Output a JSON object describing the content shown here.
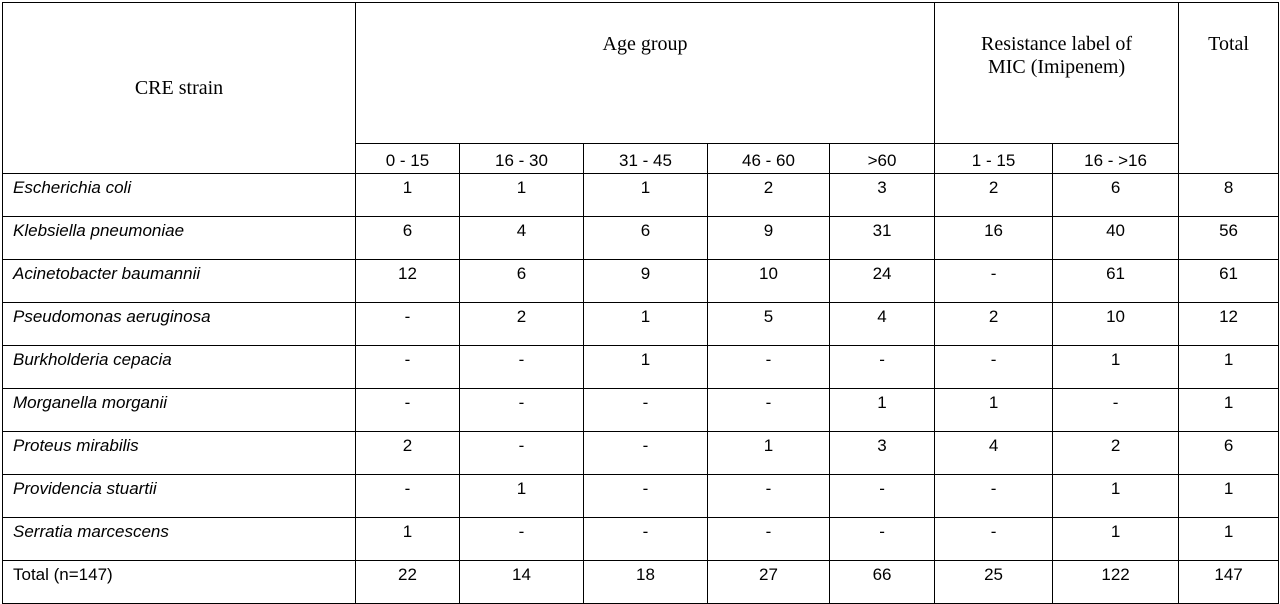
{
  "header": {
    "strain": "CRE strain",
    "age_group": "Age group",
    "resistance": [
      "Resistance label of",
      "MIC (Imipenem)"
    ],
    "total": "Total"
  },
  "subheaders": [
    "0 - 15",
    "16 - 30",
    "31 - 45",
    "46 - 60",
    ">60",
    "1 - 15",
    "16 - >16"
  ],
  "rows": [
    {
      "name": "Escherichia coli",
      "values": [
        "1",
        "1",
        "1",
        "2",
        "3",
        "2",
        "6",
        "8"
      ]
    },
    {
      "name": "Klebsiella pneumoniae",
      "values": [
        "6",
        "4",
        "6",
        "9",
        "31",
        "16",
        "40",
        "56"
      ]
    },
    {
      "name": "Acinetobacter baumannii",
      "values": [
        "12",
        "6",
        "9",
        "10",
        "24",
        "-",
        "61",
        "61"
      ]
    },
    {
      "name": "Pseudomonas aeruginosa",
      "values": [
        "-",
        "2",
        "1",
        "5",
        "4",
        "2",
        "10",
        "12"
      ]
    },
    {
      "name": "Burkholderia cepacia",
      "values": [
        "-",
        "-",
        "1",
        "-",
        "-",
        "-",
        "1",
        "1"
      ]
    },
    {
      "name": "Morganella morganii",
      "values": [
        "-",
        "-",
        "-",
        "-",
        "1",
        "1",
        "-",
        "1"
      ]
    },
    {
      "name": "Proteus mirabilis",
      "values": [
        "2",
        "-",
        "-",
        "1",
        "3",
        "4",
        "2",
        "6"
      ]
    },
    {
      "name": "Providencia stuartii",
      "values": [
        "-",
        "1",
        "-",
        "-",
        "-",
        "-",
        "1",
        "1"
      ]
    },
    {
      "name": "Serratia marcescens",
      "values": [
        "1",
        "-",
        "-",
        "-",
        "-",
        "-",
        "1",
        "1"
      ]
    }
  ],
  "total_row": {
    "name": "Total (n=147)",
    "values": [
      "22",
      "14",
      "18",
      "27",
      "66",
      "25",
      "122",
      "147"
    ]
  }
}
